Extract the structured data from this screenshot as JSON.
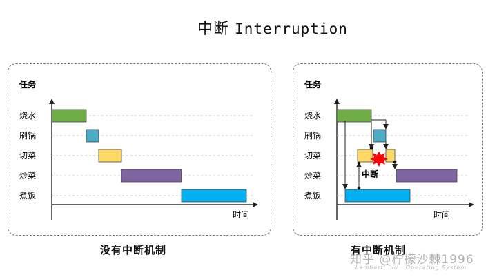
{
  "title": {
    "cn": "中断",
    "en": "Interruption"
  },
  "y_axis_label": "任务",
  "x_axis_label": "时间",
  "tasks": [
    "烧水",
    "刷锅",
    "切菜",
    "炒菜",
    "煮饭"
  ],
  "colors": {
    "烧水": "#70ad47",
    "刷锅": "#4bacc6",
    "切菜": "#ffd966",
    "炒菜": "#8064a2",
    "煮饭": "#00b0f0"
  },
  "left_panel": {
    "caption": "没有中断机制"
  },
  "right_panel": {
    "caption": "有中断机制",
    "interrupt_label": "中断"
  },
  "watermark": {
    "main": "知乎 @柠檬沙棘1996",
    "sub": "Lamberti Liu · Operating System"
  }
}
